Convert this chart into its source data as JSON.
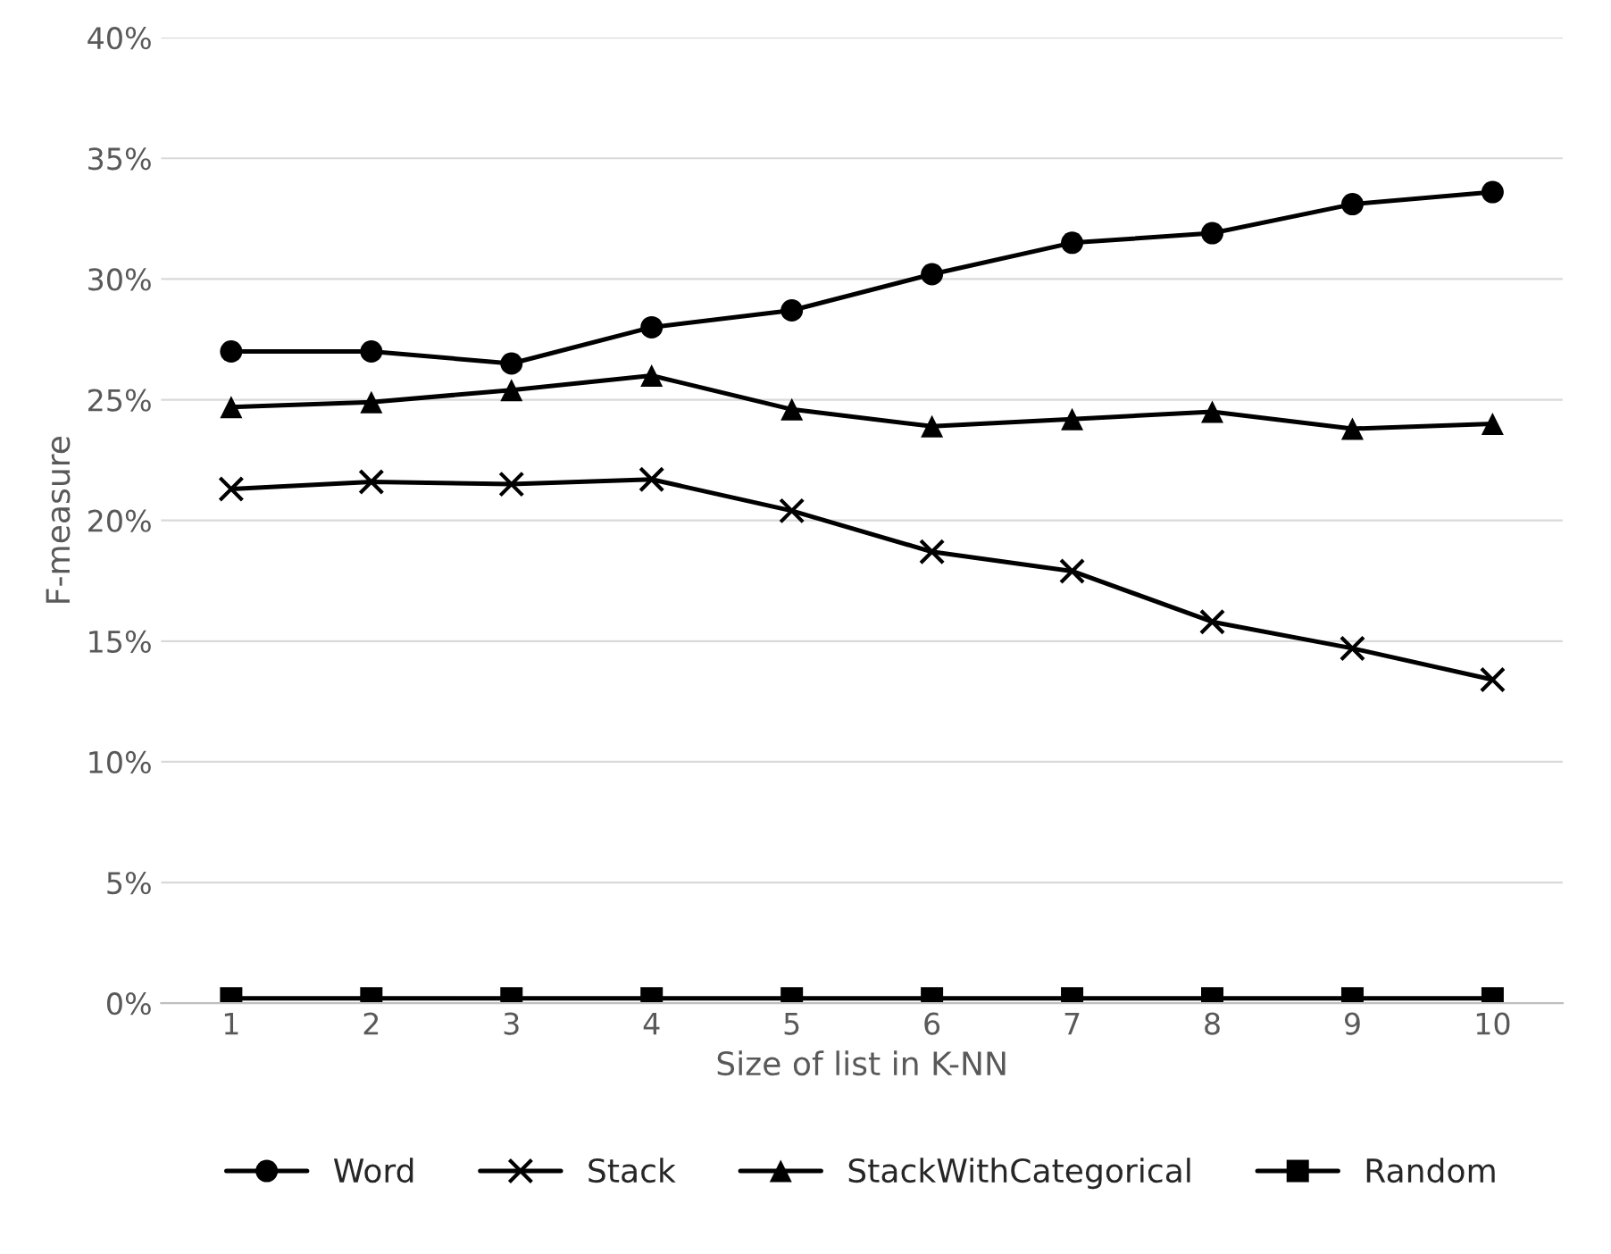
{
  "chart_data": {
    "type": "line",
    "xlabel": "Size of list in K-NN",
    "ylabel": "F-measure",
    "categories": [
      "1",
      "2",
      "3",
      "4",
      "5",
      "6",
      "7",
      "8",
      "9",
      "10"
    ],
    "series": [
      {
        "name": "Word",
        "color": "#000000",
        "marker": "circle",
        "values": [
          27.0,
          27.0,
          26.5,
          28.0,
          28.7,
          30.2,
          31.5,
          31.9,
          33.1,
          33.6
        ]
      },
      {
        "name": "Stack",
        "color": "#000000",
        "marker": "cross",
        "values": [
          21.3,
          21.6,
          21.5,
          21.7,
          20.4,
          18.7,
          17.9,
          15.8,
          14.7,
          13.4
        ]
      },
      {
        "name": "StackWithCategorical",
        "color": "#000000",
        "marker": "triangle",
        "values": [
          24.7,
          24.9,
          25.4,
          26.0,
          24.6,
          23.9,
          24.2,
          24.5,
          23.8,
          24.0
        ]
      },
      {
        "name": "Random",
        "color": "#000000",
        "marker": "square",
        "values": [
          0.2,
          0.2,
          0.2,
          0.2,
          0.2,
          0.2,
          0.2,
          0.2,
          0.2,
          0.2
        ]
      }
    ],
    "ylim": [
      0,
      40
    ],
    "yticks": [
      {
        "value": 0,
        "label": "0%"
      },
      {
        "value": 5,
        "label": "5%"
      },
      {
        "value": 10,
        "label": "10%"
      },
      {
        "value": 15,
        "label": "15%"
      },
      {
        "value": 20,
        "label": "20%"
      },
      {
        "value": 25,
        "label": "25%"
      },
      {
        "value": 30,
        "label": "30%"
      },
      {
        "value": 35,
        "label": "35%"
      },
      {
        "value": 40,
        "label": "40%"
      }
    ],
    "grid": "y",
    "legend": "bottom",
    "line_style": "solid"
  }
}
